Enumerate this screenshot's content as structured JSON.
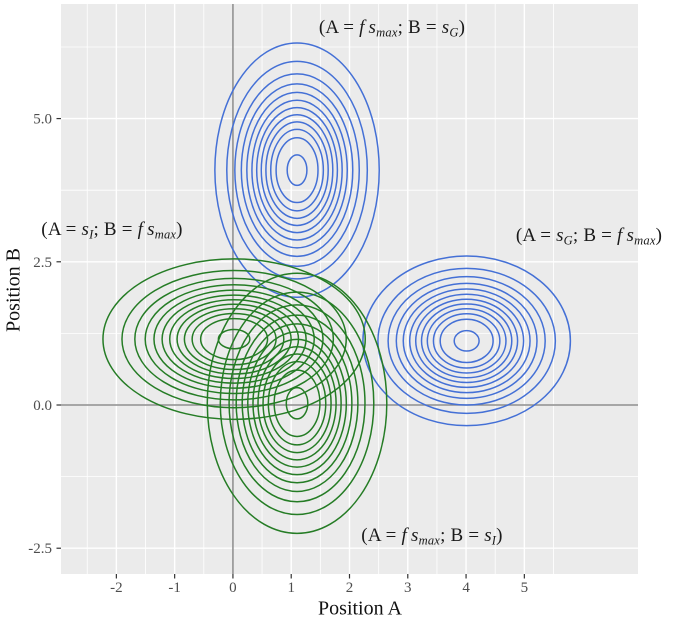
{
  "figure": {
    "annotations": {
      "top": {
        "open": "(A = ",
        "var1": "f s",
        "sub1": "max",
        "mid": "; B = ",
        "var2": "s",
        "sub2": "G",
        "close": ")"
      },
      "right": {
        "open": "(A = ",
        "var1": "s",
        "sub1": "G",
        "mid": "; B = ",
        "var2": "f s",
        "sub2": "max",
        "close": ")"
      },
      "left": {
        "open": "(A = ",
        "var1": "s",
        "sub1": "I",
        "mid": "; B = ",
        "var2": "f s",
        "sub2": "max",
        "close": ")"
      },
      "bottom": {
        "open": "(A = ",
        "var1": "f s",
        "sub1": "max",
        "mid": "; B = ",
        "var2": "s",
        "sub2": "I",
        "close": ")"
      }
    }
  },
  "chart_data": {
    "type": "contour",
    "title": "",
    "xlabel": "Position A",
    "ylabel": "Position B",
    "x_ticks": [
      -2,
      -1,
      0,
      1,
      2,
      3,
      4,
      5
    ],
    "x_tick_labels": [
      "-2",
      "-1",
      "0",
      "1",
      "2",
      "3",
      "4",
      "5"
    ],
    "y_ticks": [
      5.0,
      2.5,
      0.0,
      -2.5
    ],
    "y_tick_labels": [
      "5.0",
      "2.5",
      "0.0",
      "-2.5"
    ],
    "x_range": [
      -2.95,
      6.95
    ],
    "y_range": [
      -2.95,
      7.0
    ],
    "grid": true,
    "reference_lines": {
      "vline_x": 0,
      "hline_y": 0
    },
    "panel_bg": "#EBEBEB",
    "grid_major_color": "#FFFFFF",
    "grid_minor_color": "#FFFFFF",
    "axis_ref_line_color": "#8B8B8B",
    "tick_mark_color": "#333333",
    "tick_text_color": "#4D4D4D",
    "colors": {
      "blue": "#4470D6",
      "green": "#257C25"
    },
    "contour_levels": 12,
    "level_fractions": [
      1.0,
      0.855,
      0.757,
      0.678,
      0.611,
      0.549,
      0.491,
      0.435,
      0.379,
      0.32,
      0.255,
      0.12
    ],
    "clusters": [
      {
        "label": "(A = fs_max; B = s_G)",
        "annotation_key": "top",
        "color_key": "blue",
        "center": [
          1.1,
          4.1
        ],
        "rx": 1.41,
        "ry": 2.22
      },
      {
        "label": "(A = s_G; B = fs_max)",
        "annotation_key": "right",
        "color_key": "blue",
        "center": [
          4.01,
          1.12
        ],
        "rx": 1.78,
        "ry": 1.48
      },
      {
        "label": "(A = s_I; B = fs_max)",
        "annotation_key": "left",
        "color_key": "green",
        "center": [
          0.02,
          1.15
        ],
        "rx": 2.25,
        "ry": 1.4
      },
      {
        "label": "(A = fs_max; B = s_I)",
        "annotation_key": "bottom",
        "color_key": "green",
        "center": [
          1.1,
          0.03
        ],
        "rx": 1.54,
        "ry": 2.27
      }
    ]
  }
}
